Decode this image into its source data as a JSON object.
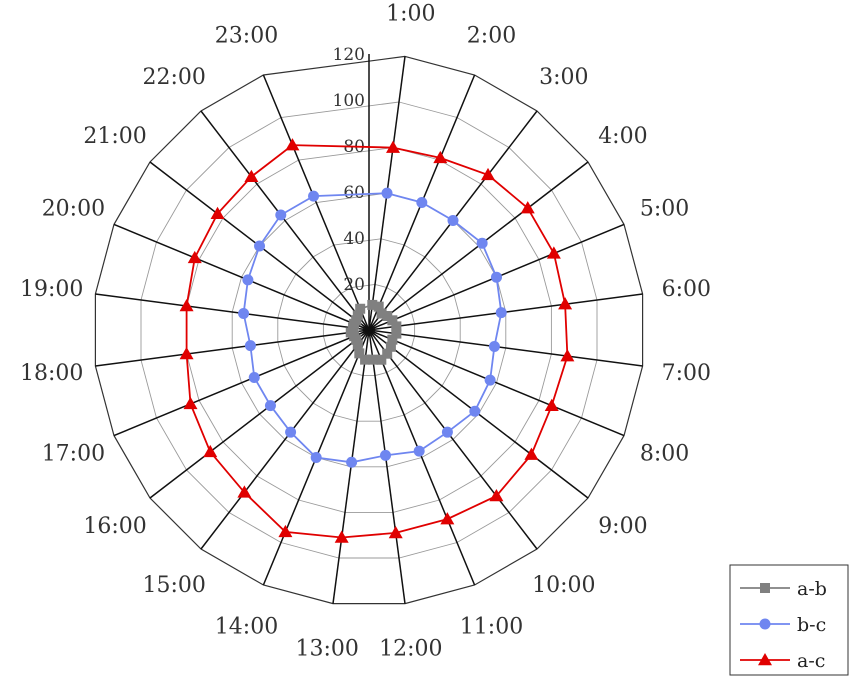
{
  "chart_data": {
    "type": "radar",
    "categories": [
      "1:00",
      "2:00",
      "3:00",
      "4:00",
      "5:00",
      "6:00",
      "7:00",
      "8:00",
      "9:00",
      "10:00",
      "11:00",
      "12:00",
      "13:00",
      "14:00",
      "15:00",
      "16:00",
      "17:00",
      "18:00",
      "19:00",
      "20:00",
      "21:00",
      "22:00",
      "23:00"
    ],
    "radial_ticks": [
      20,
      40,
      60,
      80,
      100,
      120
    ],
    "rlim": [
      0,
      120
    ],
    "grid": true,
    "legend_position": "bottom-right",
    "series": [
      {
        "name": "a-b",
        "color": "#808080",
        "marker": "square",
        "values": [
          11,
          11,
          9,
          10,
          11,
          12,
          12,
          11,
          12,
          13,
          14,
          13,
          13,
          11,
          8,
          7,
          7,
          8,
          7,
          7,
          7,
          8,
          10
        ]
      },
      {
        "name": "b-c",
        "color": "#6f86f0",
        "marker": "circle",
        "values": [
          60,
          60,
          60,
          62,
          60,
          58,
          55,
          57,
          58,
          56,
          57,
          55,
          58,
          60,
          56,
          54,
          54,
          52,
          55,
          57,
          60,
          63,
          63
        ]
      },
      {
        "name": "a-c",
        "color": "#e00000",
        "marker": "triangle",
        "values": [
          80,
          81,
          85,
          87,
          87,
          86,
          87,
          86,
          89,
          91,
          89,
          89,
          91,
          95,
          89,
          87,
          84,
          80,
          80,
          82,
          83,
          84,
          87
        ]
      }
    ]
  }
}
